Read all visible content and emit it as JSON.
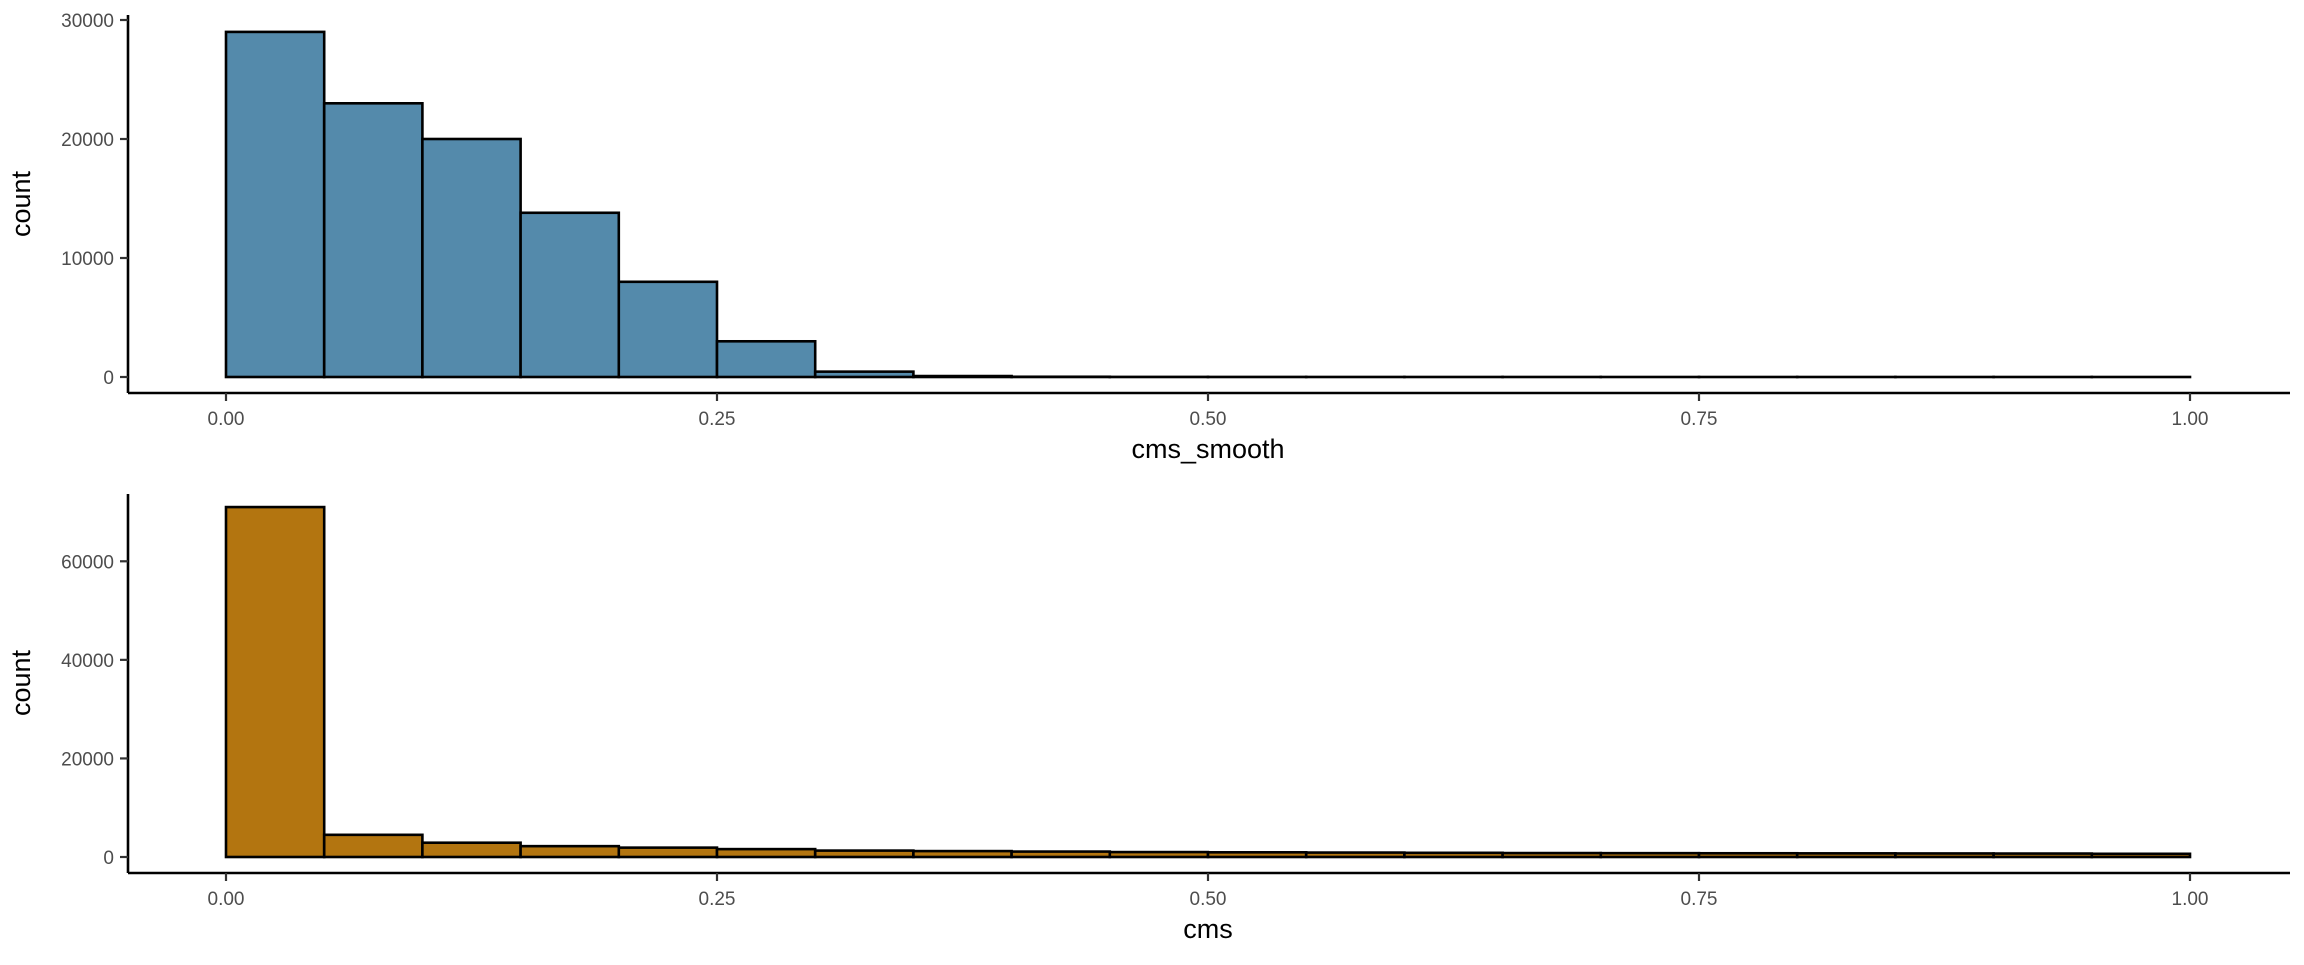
{
  "chart_data": [
    {
      "type": "bar",
      "subtype": "histogram",
      "bin_width": 0.05,
      "bins_start": [
        0.0,
        0.05,
        0.1,
        0.15,
        0.2,
        0.25,
        0.3,
        0.35,
        0.4,
        0.45,
        0.5,
        0.55,
        0.6,
        0.65,
        0.7,
        0.75,
        0.8,
        0.85,
        0.9,
        0.95
      ],
      "values": [
        29000,
        23000,
        20000,
        13800,
        8000,
        3000,
        450,
        80,
        20,
        8,
        5,
        3,
        2,
        2,
        1,
        1,
        1,
        1,
        1,
        1
      ],
      "xlabel": "cms_smooth",
      "ylabel": "count",
      "xlim": [
        0,
        1
      ],
      "ylim": [
        0,
        30000
      ],
      "xticks": [
        0,
        0.25,
        0.5,
        0.75,
        1
      ],
      "xtick_labels": [
        "0.00",
        "0.25",
        "0.50",
        "0.75",
        "1.00"
      ],
      "yticks": [
        0,
        10000,
        20000,
        30000
      ],
      "ytick_labels": [
        "0",
        "10000",
        "20000",
        "30000"
      ],
      "fill_color": "#548aab",
      "edge_color": "#000000",
      "grid": false
    },
    {
      "type": "bar",
      "subtype": "histogram",
      "bin_width": 0.05,
      "bins_start": [
        0.0,
        0.05,
        0.1,
        0.15,
        0.2,
        0.25,
        0.3,
        0.35,
        0.4,
        0.45,
        0.5,
        0.55,
        0.6,
        0.65,
        0.7,
        0.75,
        0.8,
        0.85,
        0.9,
        0.95
      ],
      "values": [
        71000,
        4500,
        2900,
        2200,
        1900,
        1600,
        1300,
        1200,
        1100,
        1000,
        950,
        900,
        850,
        800,
        780,
        760,
        740,
        720,
        700,
        650
      ],
      "xlabel": "cms",
      "ylabel": "count",
      "xlim": [
        0,
        1
      ],
      "ylim": [
        0,
        70000
      ],
      "xticks": [
        0,
        0.25,
        0.5,
        0.75,
        1
      ],
      "xtick_labels": [
        "0.00",
        "0.25",
        "0.50",
        "0.75",
        "1.00"
      ],
      "yticks": [
        0,
        20000,
        40000,
        60000
      ],
      "ytick_labels": [
        "0",
        "20000",
        "40000",
        "60000"
      ],
      "fill_color": "#b37510",
      "edge_color": "#000000",
      "grid": false
    }
  ]
}
